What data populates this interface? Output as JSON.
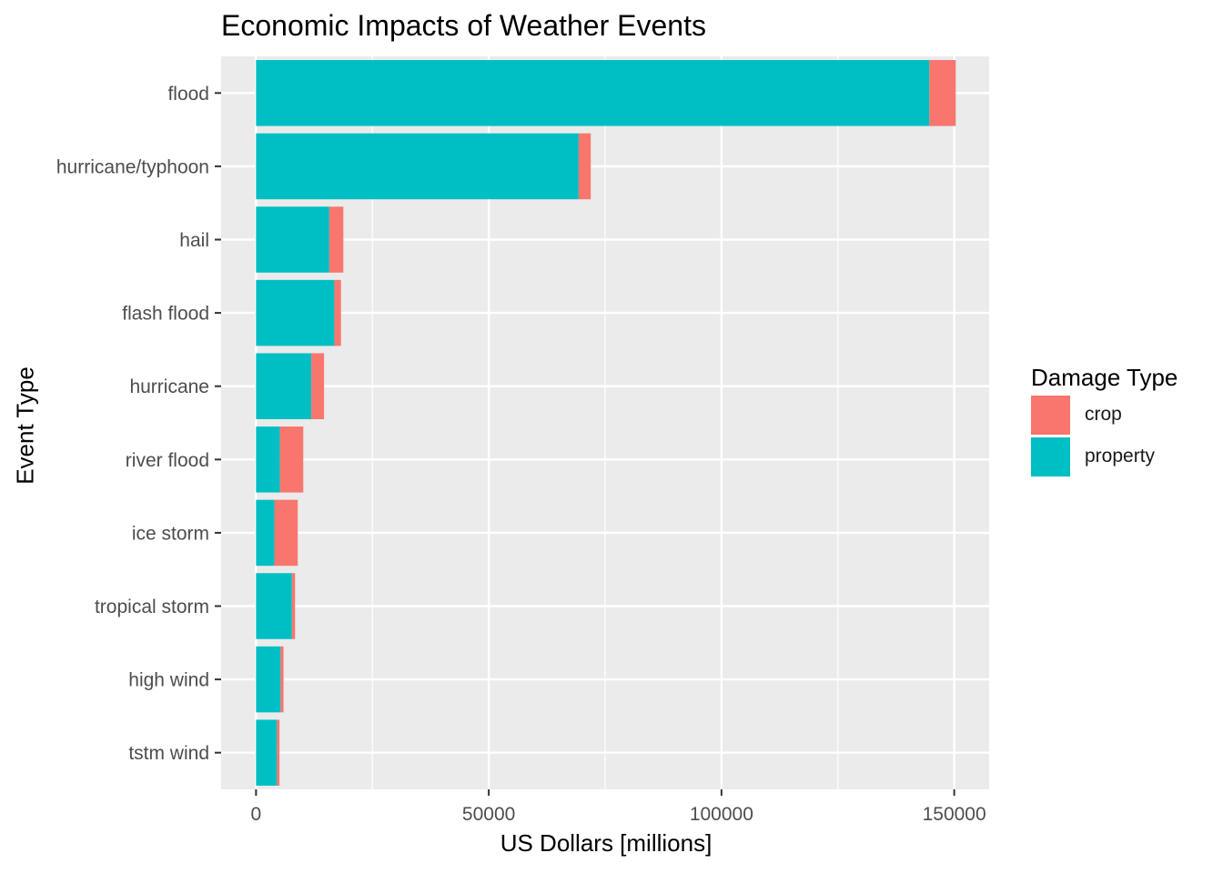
{
  "chart_data": {
    "type": "bar",
    "orientation": "horizontal",
    "stacked": true,
    "title": "Economic Impacts of Weather Events",
    "xlabel": "US Dollars [millions]",
    "ylabel": "Event Type",
    "categories": [
      "flood",
      "hurricane/typhoon",
      "hail",
      "flash flood",
      "hurricane",
      "river flood",
      "ice storm",
      "tropical storm",
      "high wind",
      "tstm wind"
    ],
    "series": [
      {
        "name": "property",
        "color": "#00BFC4",
        "values": [
          144658,
          69306,
          15732,
          16823,
          11868,
          5119,
          3945,
          7704,
          5270,
          4485
        ]
      },
      {
        "name": "crop",
        "color": "#F8766D",
        "values": [
          5662,
          2608,
          3026,
          1421,
          2741,
          5029,
          5022,
          678,
          639,
          554
        ]
      }
    ],
    "xlim": [
      -7500,
      157500
    ],
    "xticks": [
      0,
      50000,
      100000,
      150000
    ],
    "xtick_labels": [
      "0",
      "50000",
      "100000",
      "150000"
    ],
    "grid": true,
    "legend": {
      "title": "Damage Type",
      "position": "right",
      "entries": [
        "crop",
        "property"
      ]
    }
  }
}
